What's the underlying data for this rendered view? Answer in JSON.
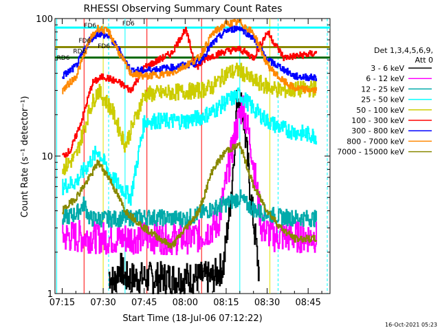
{
  "chart_data": {
    "type": "line",
    "title": "RHESSI Observing Summary Count Rates",
    "xlabel": "Start Time (18-Jul-06 07:12:22)",
    "ylabel": "Count Rate (s⁻¹ detector⁻¹)",
    "yscale": "log",
    "ylim": [
      1,
      100
    ],
    "xlim": [
      "07:12:22",
      "08:53:00"
    ],
    "x_ticks": [
      "07:15",
      "07:30",
      "07:45",
      "08:00",
      "08:15",
      "08:30",
      "08:45"
    ],
    "y_ticks": [
      "1",
      "10",
      "100"
    ],
    "legend_position": "right",
    "legend_header": [
      "Det 1,3,4,5,6,9,",
      "Att 0"
    ],
    "timestamp": "16-Oct-2021 05:23",
    "series": [
      {
        "name": "3 - 6 keV",
        "color": "#000000",
        "x": [
          "07:32",
          "07:34",
          "07:36",
          "07:38",
          "08:10",
          "08:14",
          "08:17",
          "08:19",
          "08:21",
          "08:24",
          "08:27"
        ],
        "values": [
          1.4,
          1.2,
          1.6,
          1.3,
          1.3,
          1.6,
          6,
          28,
          22,
          5,
          1.4
        ]
      },
      {
        "name": "6 - 12 keV",
        "color": "#ff00ff",
        "x": [
          "07:15",
          "07:25",
          "07:35",
          "07:45",
          "07:55",
          "08:05",
          "08:12",
          "08:18",
          "08:21",
          "08:24",
          "08:28",
          "08:33",
          "08:40",
          "08:48"
        ],
        "values": [
          2.6,
          2.6,
          2.5,
          2.6,
          2.5,
          2.6,
          3.2,
          14,
          24,
          12,
          3,
          2.6,
          2.6,
          2.6
        ]
      },
      {
        "name": "12 - 25 keV",
        "color": "#00aaaa",
        "x": [
          "07:15",
          "07:20",
          "07:23",
          "07:25",
          "07:35",
          "07:45",
          "08:00",
          "08:05",
          "08:15",
          "08:20",
          "08:22",
          "08:26",
          "08:30",
          "08:35",
          "08:48"
        ],
        "values": [
          3.5,
          3.8,
          4.5,
          3.5,
          3.5,
          3.6,
          3.5,
          3.8,
          4.5,
          5,
          4.5,
          4,
          3.8,
          3.6,
          3.5
        ]
      },
      {
        "name": "25 - 50 keV",
        "color": "#00ffff",
        "x": [
          "07:15",
          "07:20",
          "07:25",
          "07:28",
          "07:33",
          "07:40",
          "07:45",
          "07:50",
          "08:00",
          "08:05",
          "08:10",
          "08:15",
          "08:20",
          "08:25",
          "08:30",
          "08:35",
          "08:40",
          "08:48"
        ],
        "values": [
          6,
          6.5,
          9,
          11,
          7,
          5,
          18,
          18,
          18,
          19,
          21,
          25,
          28,
          22,
          18,
          16,
          15,
          14
        ]
      },
      {
        "name": "50 - 100 keV",
        "color": "#cccc00",
        "x": [
          "07:15",
          "07:20",
          "07:25",
          "07:28",
          "07:33",
          "07:38",
          "07:45",
          "07:55",
          "08:05",
          "08:10",
          "08:15",
          "08:20",
          "08:24",
          "08:30",
          "08:35",
          "08:48"
        ],
        "values": [
          8,
          10,
          22,
          30,
          22,
          12,
          28,
          29,
          30,
          32,
          40,
          42,
          36,
          32,
          30,
          31
        ]
      },
      {
        "name": "100 - 300 keV",
        "color": "#ff0000",
        "x": [
          "07:15",
          "07:18",
          "07:22",
          "07:26",
          "07:30",
          "07:36",
          "07:40",
          "07:45",
          "07:55",
          "08:00",
          "08:04",
          "08:08",
          "08:15",
          "08:20",
          "08:25",
          "08:30",
          "08:36",
          "08:48"
        ],
        "values": [
          10,
          11,
          18,
          34,
          38,
          34,
          30,
          44,
          56,
          84,
          44,
          52,
          58,
          60,
          52,
          80,
          52,
          56
        ]
      },
      {
        "name": "300 - 800 keV",
        "color": "#0000ff",
        "x": [
          "07:15",
          "07:20",
          "07:25",
          "07:28",
          "07:32",
          "07:36",
          "07:40",
          "07:45",
          "07:55",
          "08:05",
          "08:10",
          "08:15",
          "08:20",
          "08:25",
          "08:30",
          "08:35",
          "08:40",
          "08:48"
        ],
        "values": [
          38,
          45,
          70,
          78,
          74,
          58,
          42,
          42,
          44,
          48,
          66,
          82,
          86,
          72,
          50,
          44,
          38,
          37
        ]
      },
      {
        "name": "800 - 7000 keV",
        "color": "#ff8800",
        "x": [
          "07:15",
          "07:20",
          "07:25",
          "07:28",
          "07:32",
          "07:36",
          "07:40",
          "07:45",
          "07:55",
          "08:05",
          "08:10",
          "08:15",
          "08:20",
          "08:25",
          "08:30",
          "08:35",
          "08:40",
          "08:48"
        ],
        "values": [
          30,
          38,
          70,
          85,
          80,
          55,
          40,
          38,
          40,
          52,
          78,
          92,
          94,
          78,
          46,
          36,
          31,
          30
        ]
      },
      {
        "name": "7000 - 15000 keV",
        "color": "#888800",
        "x": [
          "07:15",
          "07:20",
          "07:25",
          "07:28",
          "07:32",
          "07:38",
          "07:45",
          "07:55",
          "08:05",
          "08:10",
          "08:15",
          "08:20",
          "08:25",
          "08:30",
          "08:35",
          "08:40",
          "08:48"
        ],
        "values": [
          4,
          5,
          7,
          9,
          7,
          4,
          3,
          2.2,
          4,
          8,
          11,
          12,
          6,
          4,
          3,
          2.5,
          2.5
        ]
      }
    ],
    "annotations": [
      {
        "label": "FD6",
        "color": "#aa6600",
        "x": "07:23",
        "y": 86
      },
      {
        "label": "FD6",
        "color": "#aa6600",
        "x": "07:21",
        "y": 67
      },
      {
        "label": "FD6",
        "color": "#aa6600",
        "x": "07:28",
        "y": 61
      },
      {
        "label": "RD6",
        "color": "#006600",
        "x": "07:19",
        "y": 56
      },
      {
        "label": "RD6",
        "color": "#006600",
        "x": "07:13",
        "y": 50
      },
      {
        "label": "FD6",
        "color": "#aa6600",
        "x": "07:37",
        "y": 89
      }
    ],
    "flag_bars": [
      {
        "name": "saa",
        "color": "#00ffff",
        "start": "07:12:22",
        "end": "08:53:00",
        "y": 86
      },
      {
        "name": "fd6",
        "color": "#888800",
        "start": "07:12:22",
        "end": "08:53:00",
        "y": 62
      },
      {
        "name": "rd6",
        "color": "#006600",
        "start": "07:12:22",
        "end": "08:53:00",
        "y": 52
      }
    ],
    "vertical_markers": {
      "cyan_dashed": [
        "07:32",
        "08:34",
        "08:52"
      ],
      "cyan_solid": [
        "07:13",
        "07:38",
        "08:20"
      ],
      "yellow": [
        "07:30",
        "08:31"
      ],
      "red": [
        "07:23",
        "07:46",
        "08:06"
      ]
    }
  }
}
